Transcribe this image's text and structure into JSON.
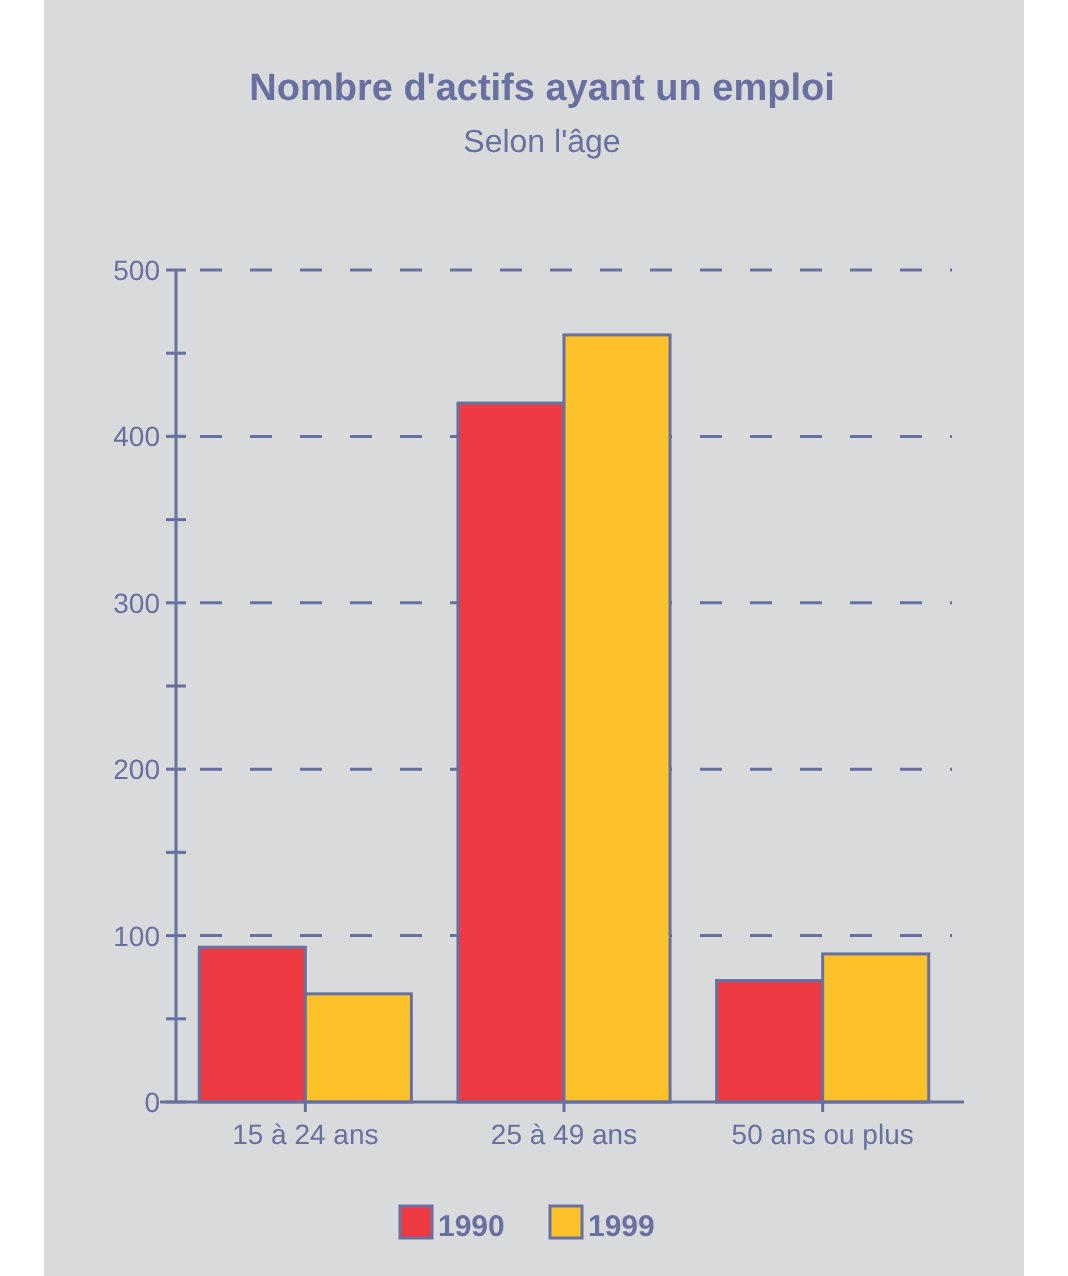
{
  "chart_data": {
    "type": "bar",
    "title": "Nombre d'actifs ayant un emploi",
    "subtitle": "Selon l'âge",
    "categories": [
      "15 à 24 ans",
      "25 à 49 ans",
      "50 ans ou plus"
    ],
    "series": [
      {
        "name": "1990",
        "color": "#ee3a42",
        "values": [
          93,
          420,
          73
        ]
      },
      {
        "name": "1999",
        "color": "#fdc22a",
        "values": [
          65,
          461,
          89
        ]
      }
    ],
    "ylim": [
      0,
      500
    ],
    "yticks": [
      0,
      {
        "value": 50,
        "label": null
      },
      100,
      {
        "value": 150,
        "label": null
      },
      200,
      {
        "value": 250,
        "label": null
      },
      300,
      {
        "value": 350,
        "label": null
      },
      400,
      {
        "value": 450,
        "label": null
      },
      500
    ],
    "grid": "y",
    "legend": "bottom"
  }
}
